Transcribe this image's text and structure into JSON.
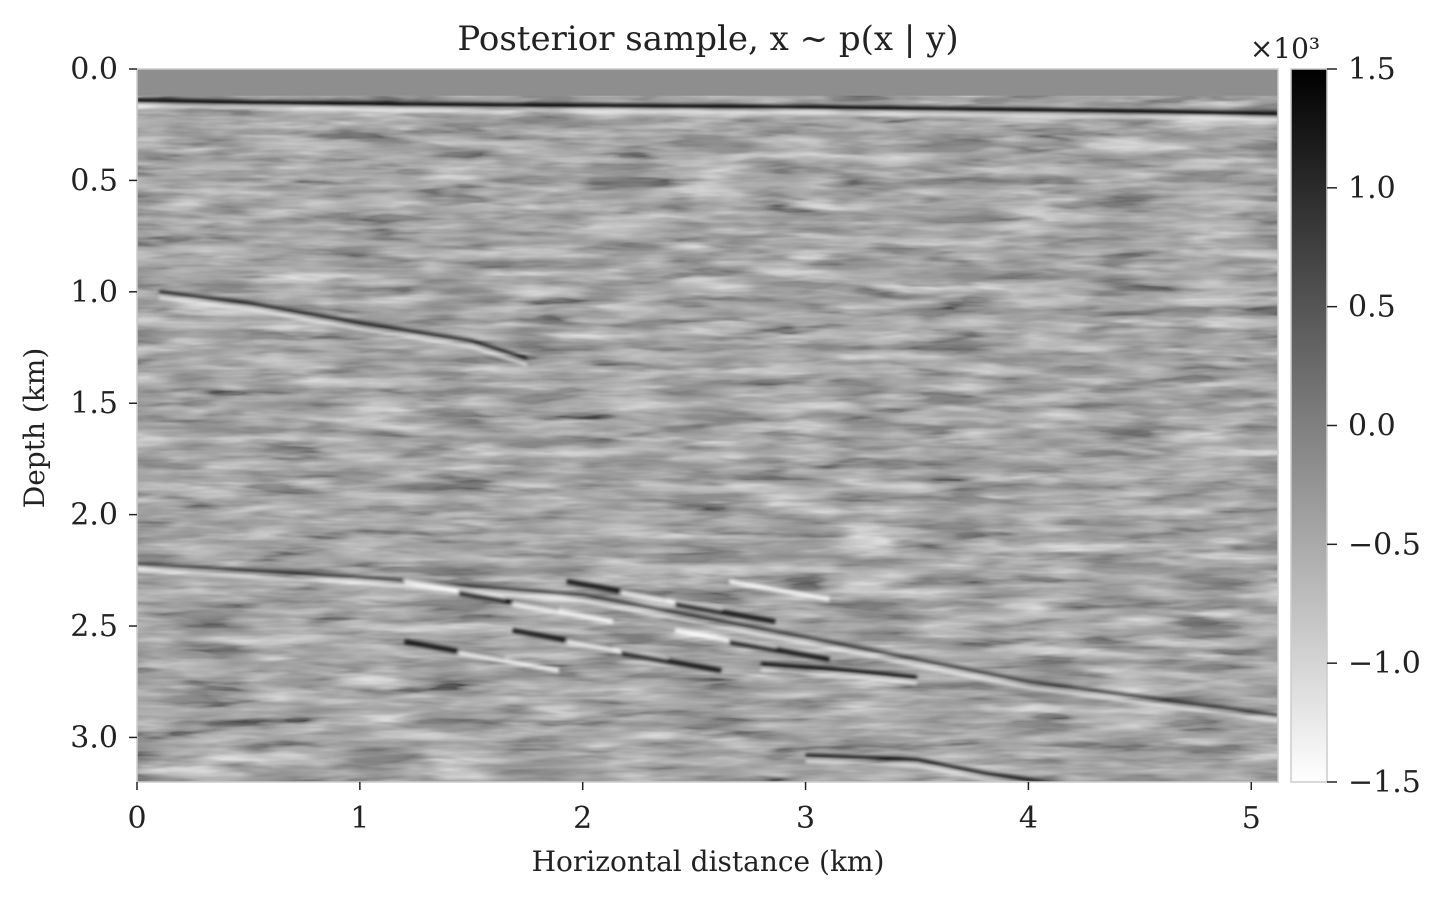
{
  "chart_data": {
    "type": "heatmap",
    "title": "Posterior sample, x ~ p(x | y)",
    "xlabel": "Horizontal distance (km)",
    "ylabel": "Depth (km)",
    "xlim": [
      0,
      5.12
    ],
    "ylim": [
      3.2,
      0.0
    ],
    "x_ticks": [
      0,
      1,
      2,
      3,
      4,
      5
    ],
    "x_tick_labels": [
      "0",
      "1",
      "2",
      "3",
      "4",
      "5"
    ],
    "y_ticks": [
      0.0,
      0.5,
      1.0,
      1.5,
      2.0,
      2.5,
      3.0
    ],
    "y_tick_labels": [
      "0.0",
      "0.5",
      "1.0",
      "1.5",
      "2.0",
      "2.5",
      "3.0"
    ],
    "colorbar": {
      "colormap": "gray_r",
      "vmin": -1.5,
      "vmax": 1.5,
      "ticks": [
        1.5,
        1.0,
        0.5,
        0.0,
        -0.5,
        -1.0,
        -1.5
      ],
      "tick_labels": [
        "1.5",
        "1.0",
        "0.5",
        "0.0",
        "−0.5",
        "−1.0",
        "−1.5"
      ],
      "multiplier_label": "×10³"
    },
    "water_layer_depth_km": 0.12,
    "reflectors": [
      {
        "x": [
          0.0,
          0.5,
          1.5,
          3.0,
          4.5,
          5.12
        ],
        "depth": [
          0.14,
          0.15,
          0.16,
          0.17,
          0.19,
          0.2
        ],
        "amplitude": 1.4
      },
      {
        "x": [
          0.1,
          0.5,
          1.0,
          1.5,
          1.75
        ],
        "depth": [
          1.0,
          1.05,
          1.14,
          1.22,
          1.3
        ],
        "amplitude": 1.0
      },
      {
        "x": [
          0.0,
          1.0,
          2.0,
          3.0,
          4.0,
          5.12
        ],
        "depth": [
          2.22,
          2.28,
          2.36,
          2.55,
          2.75,
          2.9
        ],
        "amplitude": 0.8
      },
      {
        "x": [
          2.8,
          3.2,
          3.5
        ],
        "depth": [
          2.67,
          2.7,
          2.73
        ],
        "amplitude": 1.2
      },
      {
        "x": [
          3.0,
          3.5,
          3.8,
          4.2
        ],
        "depth": [
          3.08,
          3.1,
          3.16,
          3.22
        ],
        "amplitude": 1.1
      }
    ],
    "bright_zone": {
      "x_range": [
        1.2,
        2.9
      ],
      "depth_range": [
        2.3,
        2.95
      ]
    },
    "grid": false
  },
  "colors": {
    "water": "#8e8e8e",
    "background_gray": "#8f8f8f",
    "axis_spine": "#cccccc",
    "text": "#222222"
  }
}
